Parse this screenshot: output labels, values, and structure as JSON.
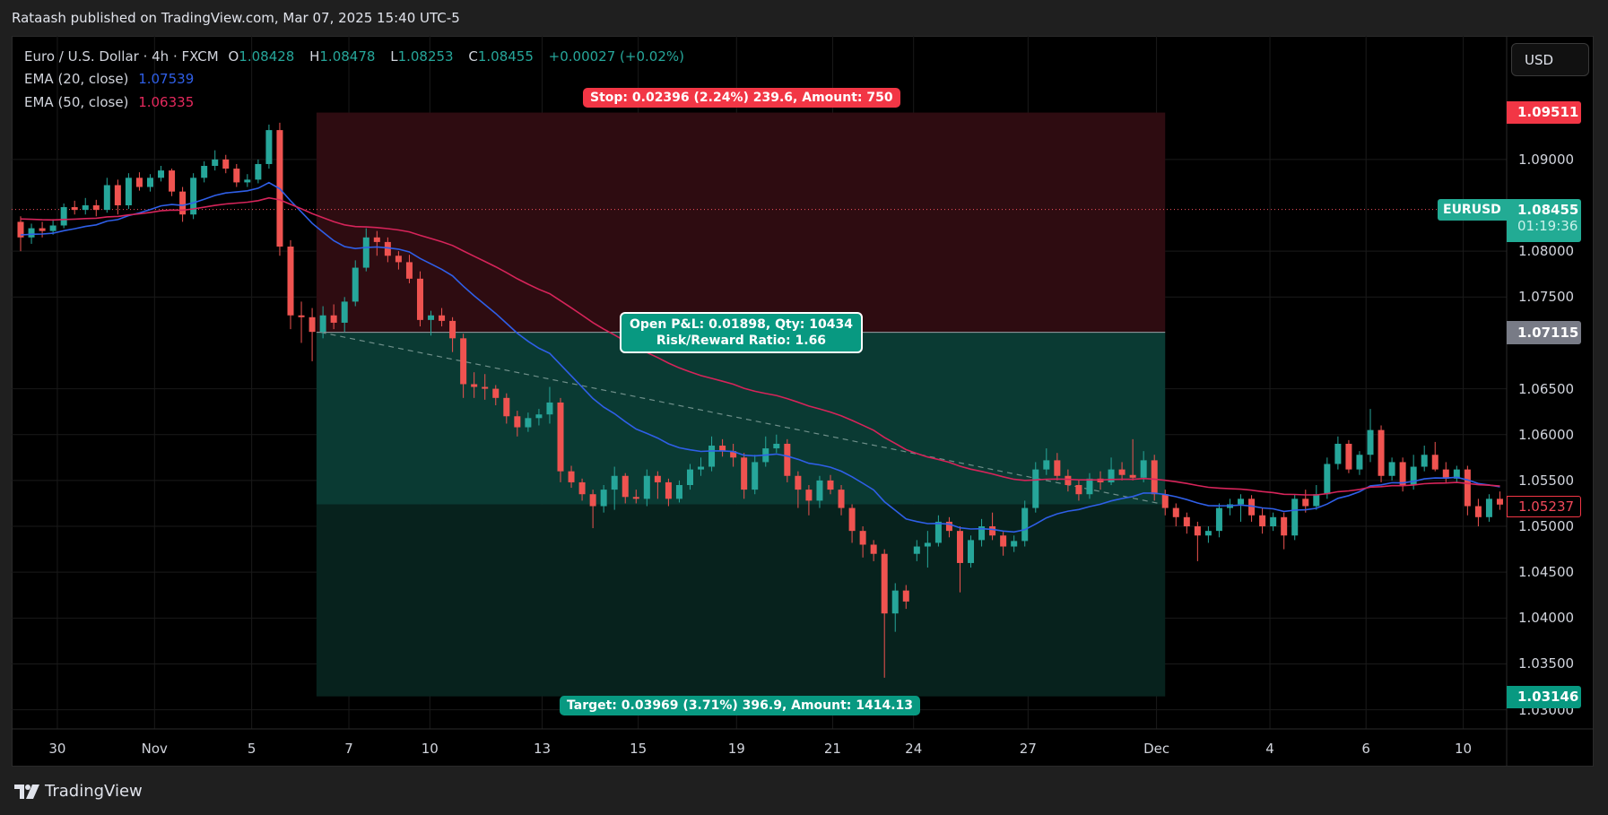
{
  "header": {
    "published": "Rataash published on TradingView.com, Mar 07, 2025 15:40 UTC-5"
  },
  "legend": {
    "symbol": "Euro / U.S. Dollar · 4h · FXCM",
    "o_label": "O",
    "o": "1.08428",
    "h_label": "H",
    "h": "1.08478",
    "l_label": "L",
    "l": "1.08253",
    "c_label": "C",
    "c": "1.08455",
    "change": "+0.00027 (+0.02%)",
    "ema20_label": "EMA (20, close)",
    "ema20": "1.07539",
    "ema50_label": "EMA (50, close)",
    "ema50": "1.06335"
  },
  "currency_button": "USD",
  "position_tool": {
    "stop_label": "Stop: 0.02396 (2.24%) 239.6, Amount: 750",
    "pnl_line1": "Open P&L: 0.01898, Qty: 10434",
    "pnl_line2": "Risk/Reward Ratio: 1.66",
    "target_label": "Target: 0.03969 (3.71%) 396.9, Amount: 1414.13",
    "entry": 1.07115,
    "stop": 1.09511,
    "target": 1.03146,
    "current": 1.05237,
    "start_bar": 27.4,
    "end_bar": 106,
    "trend_from": [
      27.8,
      1.07115
    ],
    "trend_to": [
      105.4,
      1.0525
    ]
  },
  "price_axis": {
    "ticks": [
      "1.09000",
      "1.08000",
      "1.07500",
      "1.06500",
      "1.06000",
      "1.05500",
      "1.05000",
      "1.04500",
      "1.04000",
      "1.03500",
      "1.03000"
    ],
    "stop_badge": "1.09511",
    "symbol_tag": "EURUSD",
    "last_price": "1.08455",
    "countdown": "01:19:36",
    "entry_badge": "1.07115",
    "current_badge": "1.05237",
    "target_badge": "1.03146"
  },
  "footer": {
    "brand": "TradingView"
  },
  "colors": {
    "up": "#26a69a",
    "down": "#ef5350",
    "ema20": "#2f5fe8",
    "ema50": "#d6245a",
    "stop": "#f23645",
    "target": "#089981"
  },
  "chart_data": {
    "type": "candlestick",
    "ylim": [
      1.02791,
      1.10328
    ],
    "last_price_line": 1.08455,
    "x_ticks": [
      {
        "label": "30",
        "bar": 3.4
      },
      {
        "label": "Nov",
        "bar": 12.4
      },
      {
        "label": "5",
        "bar": 21.4
      },
      {
        "label": "7",
        "bar": 30.4
      },
      {
        "label": "10",
        "bar": 37.9
      },
      {
        "label": "13",
        "bar": 48.3
      },
      {
        "label": "15",
        "bar": 57.2
      },
      {
        "label": "19",
        "bar": 66.3
      },
      {
        "label": "21",
        "bar": 75.2
      },
      {
        "label": "24",
        "bar": 82.7
      },
      {
        "label": "27",
        "bar": 93.3
      },
      {
        "label": "Dec",
        "bar": 105.2
      },
      {
        "label": "4",
        "bar": 115.7
      },
      {
        "label": "6",
        "bar": 124.6
      },
      {
        "label": "10",
        "bar": 133.6
      }
    ],
    "ohlc": [
      [
        1.0832,
        1.0838,
        1.08,
        1.0815
      ],
      [
        1.0815,
        1.083,
        1.0808,
        1.0825
      ],
      [
        1.0825,
        1.0832,
        1.0815,
        1.0822
      ],
      [
        1.0822,
        1.0835,
        1.0818,
        1.0828
      ],
      [
        1.0828,
        1.0852,
        1.0825,
        1.0848
      ],
      [
        1.0848,
        1.0855,
        1.084,
        1.0845
      ],
      [
        1.0845,
        1.0858,
        1.084,
        1.085
      ],
      [
        1.085,
        1.0856,
        1.0838,
        1.0845
      ],
      [
        1.0845,
        1.088,
        1.0842,
        1.0872
      ],
      [
        1.0872,
        1.0878,
        1.084,
        1.085
      ],
      [
        1.085,
        1.0885,
        1.0846,
        1.088
      ],
      [
        1.088,
        1.0886,
        1.0866,
        1.087
      ],
      [
        1.087,
        1.0884,
        1.0865,
        1.088
      ],
      [
        1.088,
        1.0893,
        1.0876,
        1.0888
      ],
      [
        1.0888,
        1.089,
        1.086,
        1.0865
      ],
      [
        1.0865,
        1.087,
        1.0832,
        1.084
      ],
      [
        1.084,
        1.0885,
        1.0835,
        1.088
      ],
      [
        1.088,
        1.0898,
        1.0875,
        1.0893
      ],
      [
        1.0893,
        1.091,
        1.0888,
        1.09
      ],
      [
        1.09,
        1.0905,
        1.0885,
        1.089
      ],
      [
        1.089,
        1.0895,
        1.087,
        1.0875
      ],
      [
        1.0875,
        1.0884,
        1.087,
        1.0878
      ],
      [
        1.0878,
        1.09,
        1.0874,
        1.0895
      ],
      [
        1.0895,
        1.0938,
        1.089,
        1.0932
      ],
      [
        1.0932,
        1.094,
        1.0795,
        1.0805
      ],
      [
        1.0805,
        1.0812,
        1.0715,
        1.073
      ],
      [
        1.073,
        1.0745,
        1.07,
        1.0728
      ],
      [
        1.0728,
        1.0738,
        1.068,
        1.0712
      ],
      [
        1.0712,
        1.074,
        1.0705,
        1.073
      ],
      [
        1.073,
        1.0742,
        1.0715,
        1.0722
      ],
      [
        1.0722,
        1.075,
        1.0712,
        1.0745
      ],
      [
        1.0745,
        1.079,
        1.074,
        1.0782
      ],
      [
        1.0782,
        1.0825,
        1.0778,
        1.0815
      ],
      [
        1.0815,
        1.0822,
        1.0795,
        1.081
      ],
      [
        1.081,
        1.0815,
        1.0788,
        1.0795
      ],
      [
        1.0795,
        1.08,
        1.078,
        1.0788
      ],
      [
        1.0788,
        1.0796,
        1.0765,
        1.077
      ],
      [
        1.077,
        1.0778,
        1.0718,
        1.0725
      ],
      [
        1.0725,
        1.0735,
        1.0708,
        1.073
      ],
      [
        1.073,
        1.0738,
        1.0718,
        1.0724
      ],
      [
        1.0724,
        1.0728,
        1.069,
        1.0705
      ],
      [
        1.0705,
        1.071,
        1.064,
        1.0655
      ],
      [
        1.0655,
        1.0668,
        1.064,
        1.0652
      ],
      [
        1.0652,
        1.0666,
        1.0638,
        1.065
      ],
      [
        1.065,
        1.0654,
        1.0632,
        1.064
      ],
      [
        1.064,
        1.0645,
        1.0612,
        1.062
      ],
      [
        1.062,
        1.0626,
        1.0598,
        1.0608
      ],
      [
        1.0608,
        1.0624,
        1.0603,
        1.0618
      ],
      [
        1.0618,
        1.0628,
        1.061,
        1.0622
      ],
      [
        1.0622,
        1.0652,
        1.0612,
        1.0635
      ],
      [
        1.0635,
        1.064,
        1.0548,
        1.056
      ],
      [
        1.056,
        1.0566,
        1.0542,
        1.0548
      ],
      [
        1.0548,
        1.0552,
        1.0528,
        1.0535
      ],
      [
        1.0535,
        1.054,
        1.0498,
        1.0522
      ],
      [
        1.0522,
        1.0545,
        1.0515,
        1.054
      ],
      [
        1.054,
        1.0565,
        1.0518,
        1.0555
      ],
      [
        1.0555,
        1.0558,
        1.0525,
        1.0532
      ],
      [
        1.0532,
        1.054,
        1.0525,
        1.053
      ],
      [
        1.053,
        1.0562,
        1.0522,
        1.0555
      ],
      [
        1.0555,
        1.056,
        1.053,
        1.0548
      ],
      [
        1.0548,
        1.0552,
        1.0522,
        1.053
      ],
      [
        1.053,
        1.055,
        1.0526,
        1.0545
      ],
      [
        1.0545,
        1.0568,
        1.054,
        1.0562
      ],
      [
        1.0562,
        1.0575,
        1.0555,
        1.0565
      ],
      [
        1.0565,
        1.0598,
        1.056,
        1.0588
      ],
      [
        1.0588,
        1.0595,
        1.0576,
        1.0582
      ],
      [
        1.0582,
        1.059,
        1.0565,
        1.0575
      ],
      [
        1.0575,
        1.058,
        1.053,
        1.054
      ],
      [
        1.054,
        1.0578,
        1.0535,
        1.057
      ],
      [
        1.057,
        1.0598,
        1.0565,
        1.0585
      ],
      [
        1.0585,
        1.06,
        1.058,
        1.059
      ],
      [
        1.059,
        1.0595,
        1.0548,
        1.0555
      ],
      [
        1.0555,
        1.056,
        1.052,
        1.054
      ],
      [
        1.054,
        1.0545,
        1.0512,
        1.0528
      ],
      [
        1.0528,
        1.0555,
        1.052,
        1.055
      ],
      [
        1.055,
        1.0556,
        1.0535,
        1.054
      ],
      [
        1.054,
        1.0545,
        1.0512,
        1.052
      ],
      [
        1.052,
        1.0524,
        1.0482,
        1.0495
      ],
      [
        1.0495,
        1.05,
        1.0466,
        1.048
      ],
      [
        1.048,
        1.0485,
        1.0462,
        1.047
      ],
      [
        1.047,
        1.0475,
        1.0335,
        1.0405
      ],
      [
        1.0405,
        1.0438,
        1.0385,
        1.043
      ],
      [
        1.043,
        1.0436,
        1.041,
        1.0418
      ],
      [
        1.047,
        1.0485,
        1.0462,
        1.0478
      ],
      [
        1.0478,
        1.0495,
        1.0455,
        1.0482
      ],
      [
        1.0482,
        1.0512,
        1.0478,
        1.0505
      ],
      [
        1.0505,
        1.051,
        1.0488,
        1.0495
      ],
      [
        1.0495,
        1.05,
        1.0428,
        1.046
      ],
      [
        1.046,
        1.049,
        1.0455,
        1.0485
      ],
      [
        1.0485,
        1.0508,
        1.0478,
        1.05
      ],
      [
        1.05,
        1.0515,
        1.0485,
        1.049
      ],
      [
        1.049,
        1.0494,
        1.0468,
        1.0478
      ],
      [
        1.0478,
        1.049,
        1.0472,
        1.0484
      ],
      [
        1.0484,
        1.0528,
        1.0478,
        1.052
      ],
      [
        1.052,
        1.057,
        1.0515,
        1.0562
      ],
      [
        1.0562,
        1.0585,
        1.0556,
        1.0572
      ],
      [
        1.0572,
        1.058,
        1.055,
        1.0555
      ],
      [
        1.0555,
        1.0562,
        1.0538,
        1.0545
      ],
      [
        1.0545,
        1.055,
        1.0528,
        1.0535
      ],
      [
        1.0535,
        1.0558,
        1.053,
        1.0552
      ],
      [
        1.0552,
        1.056,
        1.054,
        1.0548
      ],
      [
        1.0548,
        1.0575,
        1.0545,
        1.0562
      ],
      [
        1.0562,
        1.057,
        1.055,
        1.0556
      ],
      [
        1.0556,
        1.0595,
        1.055,
        1.0553
      ],
      [
        1.0553,
        1.0582,
        1.0548,
        1.0572
      ],
      [
        1.0572,
        1.0578,
        1.0528,
        1.0535
      ],
      [
        1.0535,
        1.054,
        1.0512,
        1.052
      ],
      [
        1.052,
        1.0525,
        1.05,
        1.051
      ],
      [
        1.051,
        1.0515,
        1.0492,
        1.05
      ],
      [
        1.05,
        1.0505,
        1.0462,
        1.049
      ],
      [
        1.049,
        1.05,
        1.0482,
        1.0495
      ],
      [
        1.0495,
        1.0525,
        1.0488,
        1.052
      ],
      [
        1.052,
        1.053,
        1.0512,
        1.0524
      ],
      [
        1.0524,
        1.0535,
        1.0505,
        1.053
      ],
      [
        1.053,
        1.0534,
        1.0505,
        1.0512
      ],
      [
        1.0512,
        1.052,
        1.0492,
        1.05
      ],
      [
        1.05,
        1.0515,
        1.0495,
        1.051
      ],
      [
        1.051,
        1.0515,
        1.0475,
        1.049
      ],
      [
        1.049,
        1.0535,
        1.0485,
        1.053
      ],
      [
        1.053,
        1.054,
        1.0515,
        1.0522
      ],
      [
        1.0522,
        1.0545,
        1.0518,
        1.0535
      ],
      [
        1.0535,
        1.0575,
        1.053,
        1.0568
      ],
      [
        1.0568,
        1.0598,
        1.0562,
        1.059
      ],
      [
        1.059,
        1.0594,
        1.0558,
        1.0562
      ],
      [
        1.0562,
        1.0582,
        1.0556,
        1.0578
      ],
      [
        1.0578,
        1.0628,
        1.057,
        1.0605
      ],
      [
        1.0605,
        1.061,
        1.0548,
        1.0555
      ],
      [
        1.0555,
        1.0575,
        1.055,
        1.057
      ],
      [
        1.057,
        1.0575,
        1.0538,
        1.0545
      ],
      [
        1.0545,
        1.0578,
        1.054,
        1.0565
      ],
      [
        1.0565,
        1.0588,
        1.056,
        1.0578
      ],
      [
        1.0578,
        1.0592,
        1.056,
        1.0562
      ],
      [
        1.0562,
        1.057,
        1.0548,
        1.0552
      ],
      [
        1.0552,
        1.0566,
        1.0548,
        1.0562
      ],
      [
        1.0562,
        1.0566,
        1.0512,
        1.0522
      ],
      [
        1.0522,
        1.053,
        1.05,
        1.051
      ],
      [
        1.051,
        1.0535,
        1.0505,
        1.053
      ],
      [
        1.053,
        1.0538,
        1.0518,
        1.05237
      ]
    ]
  }
}
